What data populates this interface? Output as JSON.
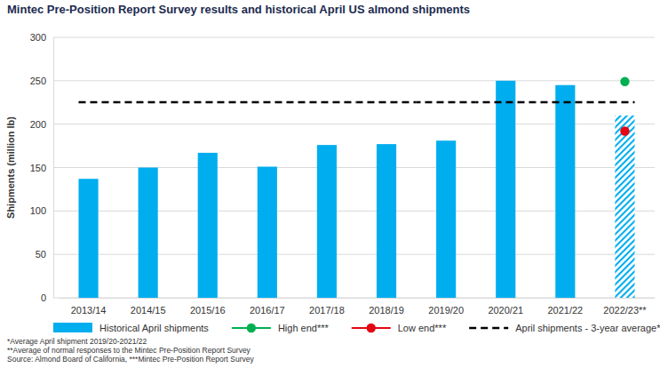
{
  "chart_data": {
    "type": "bar",
    "title": "Mintec Pre-Position Report Survey results and historical April US almond shipments",
    "y_label": "Shipments (million lb)",
    "categories": [
      "2013/14",
      "2014/15",
      "2015/16",
      "2016/17",
      "2017/18",
      "2018/19",
      "2019/20",
      "2020/21",
      "2021/22",
      "2022/23**"
    ],
    "series": [
      {
        "name": "Historical April shipments",
        "type": "bar",
        "color": "#00aeef",
        "values": [
          137,
          150,
          167,
          151,
          176,
          177,
          181,
          250,
          245,
          210
        ]
      },
      {
        "name": "High end***",
        "type": "scatter",
        "color": "#00b050",
        "marker": "circle",
        "values": [
          null,
          null,
          null,
          null,
          null,
          null,
          null,
          null,
          null,
          249
        ]
      },
      {
        "name": "Low end***",
        "type": "scatter",
        "color": "#e30613",
        "marker": "circle",
        "values": [
          null,
          null,
          null,
          null,
          null,
          null,
          null,
          null,
          null,
          192
        ]
      },
      {
        "name": "April shipments - 3-year average*",
        "type": "line",
        "color": "#000000",
        "line_style": "dashed",
        "values": [
          225.3,
          225.3,
          225.3,
          225.3,
          225.3,
          225.3,
          225.3,
          225.3,
          225.3,
          225.3
        ]
      }
    ],
    "ylim": [
      0,
      300
    ],
    "yticks": [
      0,
      50,
      100,
      150,
      200,
      250,
      300
    ],
    "grid": true,
    "legend": "bottom",
    "notes": [
      "*Average April shipment 2019/20-2021/22",
      "**Average of normal responses to the Mintec Pre-Position Report Survey",
      "Source: Almond Board of California, ***Mintec Pre-Position Report Survey"
    ]
  }
}
